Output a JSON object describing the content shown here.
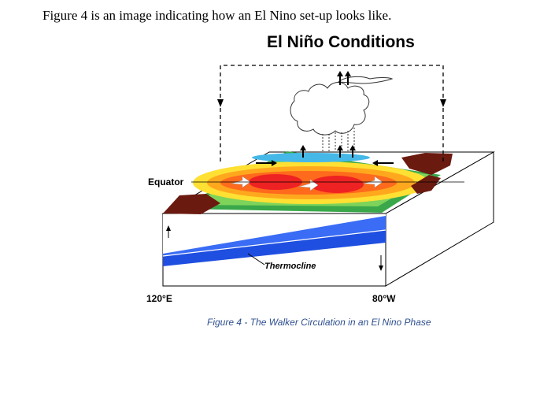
{
  "document": {
    "intro_text": "Figure 4 is an image indicating how an El Nino set-up looks like.",
    "caption": "Figure 4 - The Walker Circulation in an El Nino Phase"
  },
  "figure": {
    "title": "El Niño Conditions",
    "labels": {
      "equator": "Equator",
      "thermocline": "Thermocline",
      "west_longitude": "120°E",
      "east_longitude": "80°W"
    },
    "colors": {
      "ocean_deep": "#1f4fe0",
      "warm_core": "#ee2222",
      "land": "#6b1a10",
      "caption_text": "#2e4f8f"
    }
  }
}
